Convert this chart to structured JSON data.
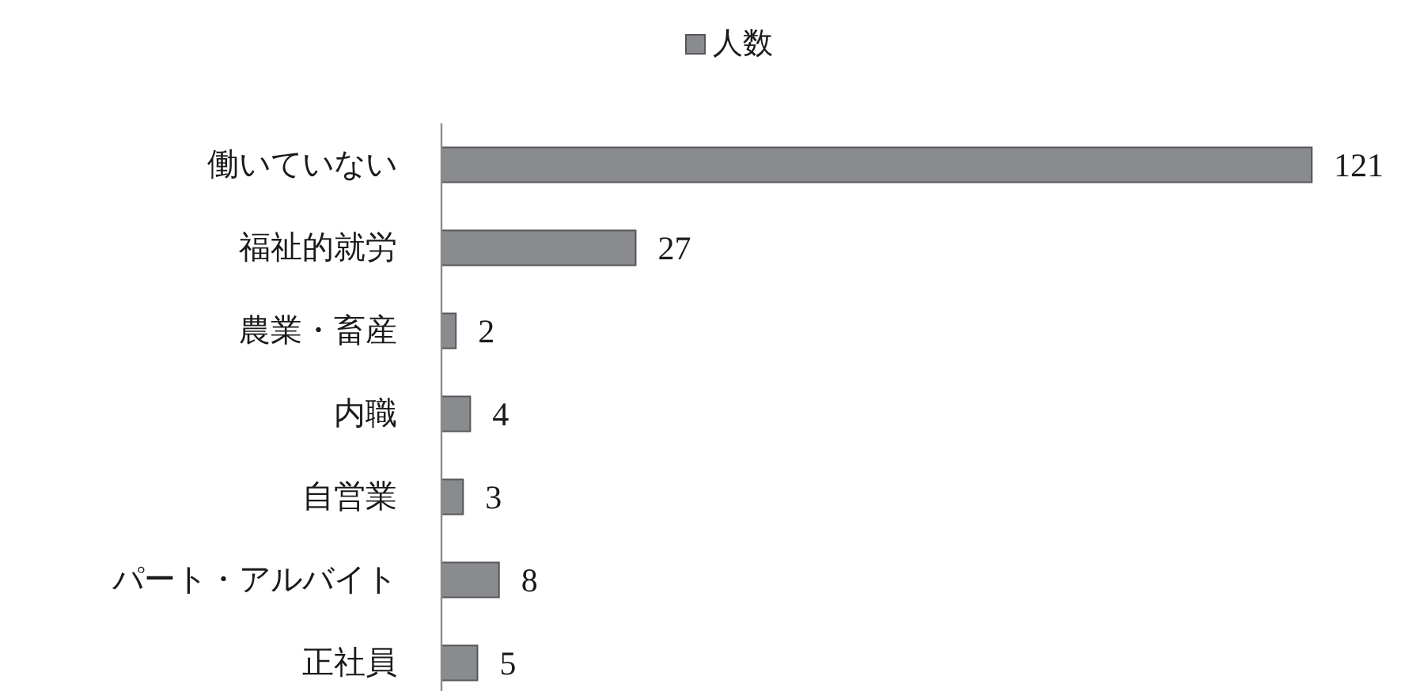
{
  "chart_data": {
    "type": "bar",
    "orientation": "horizontal",
    "categories": [
      "働いていない",
      "福祉的就労",
      "農業・畜産",
      "内職",
      "自営業",
      "パート・アルバイト",
      "正社員"
    ],
    "series": [
      {
        "name": "人数",
        "color": "#8a8b8e",
        "values": [
          121,
          27,
          2,
          4,
          3,
          8,
          5
        ]
      }
    ],
    "data_labels": true,
    "legend": "top"
  }
}
